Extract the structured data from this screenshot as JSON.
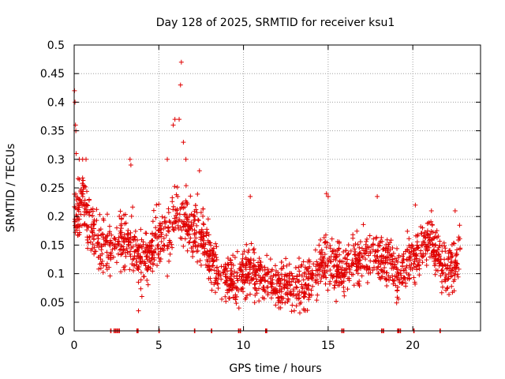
{
  "chart_data": {
    "type": "scatter",
    "title": "Day 128 of 2025, SRMTID for receiver ksu1",
    "xlabel": "GPS time / hours",
    "ylabel": "SRMTID / TECUs",
    "xlim": [
      0,
      24
    ],
    "ylim": [
      0,
      0.5
    ],
    "xticks": [
      0,
      5,
      10,
      15,
      20
    ],
    "xtick_labels": [
      "0",
      "5",
      "10",
      "15",
      "20"
    ],
    "yticks": [
      0,
      0.05,
      0.1,
      0.15,
      0.2,
      0.25,
      0.3,
      0.35,
      0.4,
      0.45,
      0.5
    ],
    "ytick_labels": [
      "0",
      "0.05",
      "0.1",
      "0.15",
      "0.2",
      "0.25",
      "0.3",
      "0.35",
      "0.4",
      "0.45",
      "0.5"
    ],
    "grid": true,
    "marker": "+",
    "series": [
      {
        "name": "SRMTID",
        "color": "#e00000",
        "trend": {
          "x": [
            0,
            0.3,
            0.6,
            1.0,
            1.5,
            2.0,
            2.5,
            3.0,
            3.5,
            4.0,
            4.5,
            5.0,
            5.5,
            6.0,
            6.5,
            7.0,
            7.5,
            8.0,
            8.5,
            9.0,
            9.5,
            10.0,
            10.5,
            11.0,
            11.5,
            12.0,
            12.5,
            13.0,
            13.5,
            14.0,
            14.5,
            15.0,
            15.5,
            16.0,
            16.5,
            17.0,
            17.5,
            18.0,
            18.5,
            19.0,
            19.5,
            20.0,
            20.5,
            21.0,
            21.5,
            22.0,
            22.5,
            22.8
          ],
          "y": [
            0.2,
            0.22,
            0.22,
            0.17,
            0.15,
            0.14,
            0.15,
            0.16,
            0.15,
            0.12,
            0.14,
            0.17,
            0.16,
            0.2,
            0.19,
            0.18,
            0.17,
            0.13,
            0.11,
            0.09,
            0.085,
            0.1,
            0.11,
            0.1,
            0.085,
            0.08,
            0.08,
            0.075,
            0.08,
            0.1,
            0.11,
            0.12,
            0.11,
            0.11,
            0.12,
            0.13,
            0.14,
            0.13,
            0.12,
            0.1,
            0.11,
            0.13,
            0.15,
            0.16,
            0.14,
            0.1,
            0.12,
            0.14
          ]
        },
        "spread": 0.055,
        "count": 1900,
        "spikes": [
          {
            "x": 0.02,
            "y": 0.42
          },
          {
            "x": 0.05,
            "y": 0.4
          },
          {
            "x": 0.08,
            "y": 0.36
          },
          {
            "x": 0.1,
            "y": 0.35
          },
          {
            "x": 0.12,
            "y": 0.31
          },
          {
            "x": 0.3,
            "y": 0.3
          },
          {
            "x": 0.5,
            "y": 0.3
          },
          {
            "x": 0.7,
            "y": 0.3
          },
          {
            "x": 3.3,
            "y": 0.3
          },
          {
            "x": 3.35,
            "y": 0.29
          },
          {
            "x": 5.5,
            "y": 0.3
          },
          {
            "x": 5.85,
            "y": 0.36
          },
          {
            "x": 5.95,
            "y": 0.37
          },
          {
            "x": 6.2,
            "y": 0.37
          },
          {
            "x": 6.28,
            "y": 0.43
          },
          {
            "x": 6.33,
            "y": 0.47
          },
          {
            "x": 6.45,
            "y": 0.33
          },
          {
            "x": 6.6,
            "y": 0.3
          },
          {
            "x": 7.4,
            "y": 0.28
          },
          {
            "x": 14.9,
            "y": 0.24
          },
          {
            "x": 15.0,
            "y": 0.235
          },
          {
            "x": 17.9,
            "y": 0.235
          },
          {
            "x": 20.15,
            "y": 0.22
          },
          {
            "x": 21.1,
            "y": 0.21
          },
          {
            "x": 22.5,
            "y": 0.21
          },
          {
            "x": 10.4,
            "y": 0.235
          },
          {
            "x": 3.8,
            "y": 0.035
          },
          {
            "x": 4.0,
            "y": 0.06
          },
          {
            "x": 12.1,
            "y": 0.04
          },
          {
            "x": 13.0,
            "y": 0.035
          }
        ],
        "zero_markers_x": [
          2.15,
          2.35,
          2.45,
          2.55,
          2.65,
          3.7,
          3.75,
          5.0,
          7.1,
          8.1,
          9.7,
          9.8,
          11.3,
          11.35,
          15.8,
          15.9,
          18.15,
          18.25,
          19.1,
          19.15,
          19.25,
          20.05,
          21.6
        ]
      }
    ]
  }
}
